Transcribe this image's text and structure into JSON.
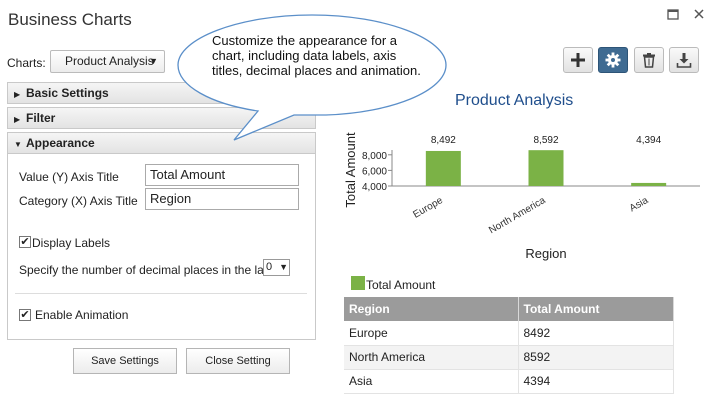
{
  "window": {
    "title": "Business Charts",
    "maximize_icon": "maximize-icon",
    "close_icon": "close-icon"
  },
  "charts_picker": {
    "label": "Charts:",
    "selected": "Product Analysis"
  },
  "sections": {
    "basic": "Basic Settings",
    "filter": "Filter",
    "appearance": "Appearance"
  },
  "appearance": {
    "value_axis_label": "Value (Y) Axis Title",
    "value_axis_value": "Total Amount",
    "category_axis_label": "Category (X) Axis Title",
    "category_axis_value": "Region",
    "display_labels": "Display Labels",
    "display_labels_checked": true,
    "decimal_label": "Specify the number of decimal places in the label:",
    "decimal_value": "0",
    "enable_animation": "Enable Animation",
    "enable_animation_checked": true
  },
  "buttons": {
    "save": "Save Settings",
    "close": "Close Setting"
  },
  "tooltip": {
    "text": "Customize the appearance for a chart, including data labels, axis titles, decimal places and animation."
  },
  "toolbar": {
    "add_icon": "plus-icon",
    "settings_icon": "gear-icon",
    "delete_icon": "trash-icon",
    "download_icon": "download-icon"
  },
  "colors": {
    "bar": "#7bb246",
    "title": "#1f4e8c",
    "active_tool": "#3f6b92"
  },
  "chart_data": {
    "type": "bar",
    "title": "Product Analysis",
    "xlabel": "Region",
    "ylabel": "Total Amount",
    "categories": [
      "Europe",
      "North America",
      "Asia"
    ],
    "series": [
      {
        "name": "Total Amount",
        "values": [
          8492,
          8592,
          4394
        ]
      }
    ],
    "data_labels": [
      "8,492",
      "8,592",
      "4,394"
    ],
    "yticks": [
      "4,000",
      "6,000",
      "8,000"
    ],
    "ylim": [
      4000,
      9000
    ],
    "legend": "bottom-left"
  },
  "table": {
    "headers": [
      "Region",
      "Total Amount"
    ],
    "rows": [
      [
        "Europe",
        "8492"
      ],
      [
        "North America",
        "8592"
      ],
      [
        "Asia",
        "4394"
      ]
    ]
  }
}
